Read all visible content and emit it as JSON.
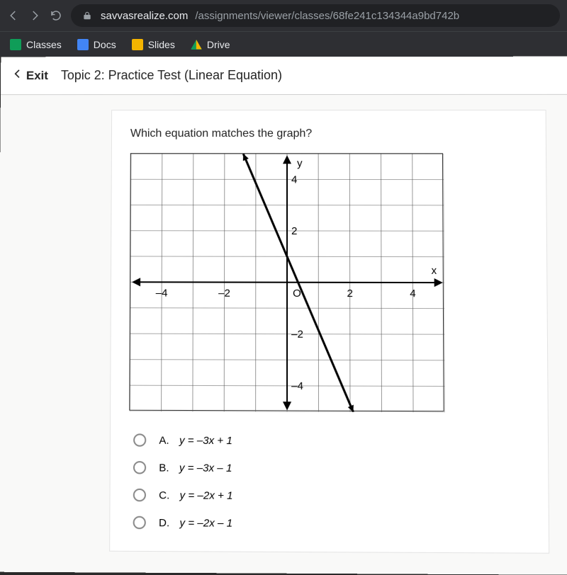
{
  "browser": {
    "url_domain": "savvasrealize.com",
    "url_path": "/assignments/viewer/classes/68fe241c134344a9bd742b"
  },
  "bookmarks": [
    {
      "label": "Classes",
      "fav": "classes"
    },
    {
      "label": "Docs",
      "fav": "docs"
    },
    {
      "label": "Slides",
      "fav": "slides"
    },
    {
      "label": "Drive",
      "fav": "drive"
    }
  ],
  "header": {
    "exit_label": "Exit",
    "title": "Topic 2: Practice Test (Linear Equation)"
  },
  "question": "Which equation matches the graph?",
  "graph": {
    "type": "line",
    "x_axis": {
      "min": -5,
      "max": 5,
      "ticks": [
        -4,
        -2,
        0,
        2,
        4
      ],
      "label": "x"
    },
    "y_axis": {
      "min": -5,
      "max": 5,
      "ticks": [
        -4,
        -2,
        2,
        4
      ],
      "label": "y"
    },
    "origin_label": "O",
    "grid_color": "#555",
    "axis_color": "#000",
    "line_color": "#000",
    "line_width": 3,
    "line_points": [
      [
        -1.4,
        5
      ],
      [
        2.1,
        -5
      ]
    ],
    "background_color": "#ffffff"
  },
  "answers": [
    {
      "letter": "A.",
      "text": "y = –3x + 1"
    },
    {
      "letter": "B.",
      "text": "y = –3x – 1"
    },
    {
      "letter": "C.",
      "text": "y = –2x + 1"
    },
    {
      "letter": "D.",
      "text": "y = –2x – 1"
    }
  ]
}
